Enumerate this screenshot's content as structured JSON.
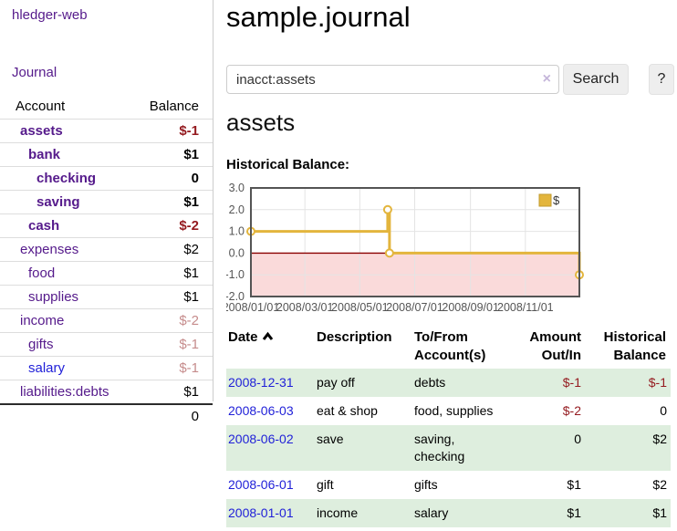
{
  "app": {
    "brand": "hledger-web",
    "nav_journal": "Journal"
  },
  "colors": {
    "link_purple": "#551a8b",
    "link_blue": "#1f1fd8",
    "neg_strong": "#941a1f",
    "neg_dim": "#c68c8c",
    "stripe_green": "#deeede",
    "chart_line": "#e3b53d",
    "chart_zero_line": "#8b0000",
    "chart_negative_fill": "#fadada",
    "chart_frame": "#545454"
  },
  "sidebar": {
    "accounts": {
      "col_account": "Account",
      "col_balance": "Balance",
      "rows": [
        {
          "name": "assets",
          "depth": 1,
          "bold": true,
          "balance": "$-1",
          "neg": "strong"
        },
        {
          "name": "bank",
          "depth": 2,
          "bold": true,
          "balance": "$1",
          "neg": "none"
        },
        {
          "name": "checking",
          "depth": 3,
          "bold": true,
          "balance": "0",
          "neg": "none"
        },
        {
          "name": "saving",
          "depth": 3,
          "bold": true,
          "balance": "$1",
          "neg": "none"
        },
        {
          "name": "cash",
          "depth": 2,
          "bold": true,
          "balance": "$-2",
          "neg": "strong"
        },
        {
          "name": "expenses",
          "depth": 1,
          "bold": false,
          "balance": "$2",
          "neg": "none"
        },
        {
          "name": "food",
          "depth": 2,
          "bold": false,
          "balance": "$1",
          "neg": "none"
        },
        {
          "name": "supplies",
          "depth": 2,
          "bold": false,
          "balance": "$1",
          "neg": "none"
        },
        {
          "name": "income",
          "depth": 1,
          "bold": false,
          "balance": "$-2",
          "neg": "dim"
        },
        {
          "name": "gifts",
          "depth": 2,
          "bold": false,
          "balance": "$-1",
          "neg": "dim"
        },
        {
          "name": "salary",
          "depth": 2,
          "bold": false,
          "balance": "$-1",
          "neg": "dim",
          "link_color": "blue"
        },
        {
          "name": "liabilities:debts",
          "depth": 1,
          "bold": false,
          "balance": "$1",
          "neg": "none"
        }
      ],
      "total": "0"
    }
  },
  "main": {
    "title": "sample.journal",
    "search": {
      "value": "inacct:assets",
      "clear_icon": "×",
      "button_label": "Search",
      "help_label": "?"
    },
    "heading": "assets",
    "chart_label": "Historical Balance:"
  },
  "chart_data": {
    "type": "line",
    "title": "Historical Balance:",
    "step": true,
    "xlabel": "",
    "ylabel": "",
    "ylim": [
      -2,
      3
    ],
    "yticks": [
      3,
      2,
      1,
      0,
      -1,
      -2
    ],
    "x_range": [
      "2008-01-01",
      "2008-12-31"
    ],
    "xticks": [
      {
        "t": "2008-01-01",
        "label": "2008/01/01"
      },
      {
        "t": "2008-03-01",
        "label": "2008/03/01"
      },
      {
        "t": "2008-05-01",
        "label": "2008/05/01"
      },
      {
        "t": "2008-07-01",
        "label": "2008/07/01"
      },
      {
        "t": "2008-09-01",
        "label": "2008/09/01"
      },
      {
        "t": "2008-11-01",
        "label": "2008/11/01"
      }
    ],
    "grid": true,
    "legend_position": "top-right",
    "series": [
      {
        "name": "$",
        "points": [
          [
            "2008-01-01",
            1
          ],
          [
            "2008-06-01",
            2
          ],
          [
            "2008-06-03",
            0
          ],
          [
            "2008-12-31",
            -1
          ]
        ]
      }
    ]
  },
  "txn_table": {
    "headers": {
      "date": "Date",
      "description": "Description",
      "accounts": "To/From Account(s)",
      "amount": "Amount Out/In",
      "balance": "Historical Balance"
    },
    "rows": [
      {
        "date": "2008-12-31",
        "description": "pay off",
        "accounts": "debts",
        "amount": "$-1",
        "amount_neg": true,
        "balance": "$-1",
        "balance_neg": true
      },
      {
        "date": "2008-06-03",
        "description": "eat & shop",
        "accounts": "food, supplies",
        "amount": "$-2",
        "amount_neg": true,
        "balance": "0",
        "balance_neg": false
      },
      {
        "date": "2008-06-02",
        "description": "save",
        "accounts": "saving, checking",
        "amount": "0",
        "amount_neg": false,
        "balance": "$2",
        "balance_neg": false
      },
      {
        "date": "2008-06-01",
        "description": "gift",
        "accounts": "gifts",
        "amount": "$1",
        "amount_neg": false,
        "balance": "$2",
        "balance_neg": false
      },
      {
        "date": "2008-01-01",
        "description": "income",
        "accounts": "salary",
        "amount": "$1",
        "amount_neg": false,
        "balance": "$1",
        "balance_neg": false
      }
    ]
  }
}
